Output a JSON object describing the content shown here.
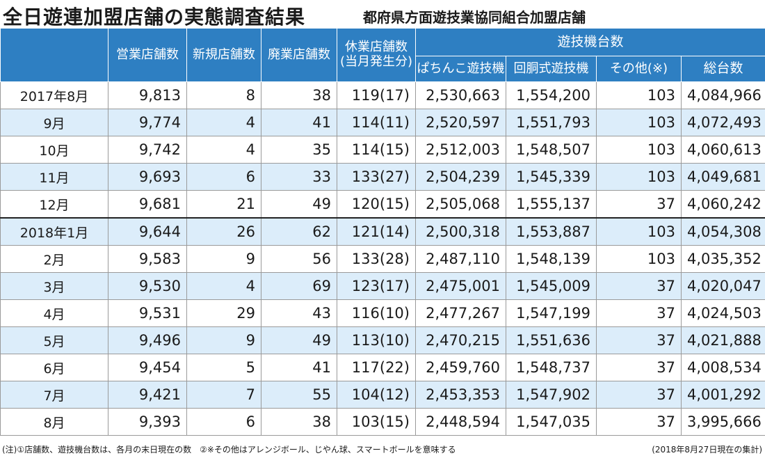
{
  "title": "全日遊連加盟店舗の実態調査結果",
  "subtitle": "都府県方面遊技業協同組合加盟店舗",
  "headers": {
    "business": "営業店舗数",
    "new": "新規店舗数",
    "closed": "廃業店舗数",
    "suspended_line1": "休業店舗数",
    "suspended_line2": "(当月発生分)",
    "machines_group": "遊技機台数",
    "pachinko": "ぱちんこ遊技機",
    "slot": "回胴式遊技機",
    "other": "その他(※)",
    "total": "総台数"
  },
  "rows": [
    {
      "month": "2017年8月",
      "business": "9,813",
      "new": "8",
      "closed": "38",
      "suspended": "119(17)",
      "pachinko": "2,530,663",
      "slot": "1,554,200",
      "other": "103",
      "total": "4,084,966"
    },
    {
      "month": "9月",
      "business": "9,774",
      "new": "4",
      "closed": "41",
      "suspended": "114(11)",
      "pachinko": "2,520,597",
      "slot": "1,551,793",
      "other": "103",
      "total": "4,072,493"
    },
    {
      "month": "10月",
      "business": "9,742",
      "new": "4",
      "closed": "35",
      "suspended": "114(15)",
      "pachinko": "2,512,003",
      "slot": "1,548,507",
      "other": "103",
      "total": "4,060,613"
    },
    {
      "month": "11月",
      "business": "9,693",
      "new": "6",
      "closed": "33",
      "suspended": "133(27)",
      "pachinko": "2,504,239",
      "slot": "1,545,339",
      "other": "103",
      "total": "4,049,681"
    },
    {
      "month": "12月",
      "business": "9,681",
      "new": "21",
      "closed": "49",
      "suspended": "120(15)",
      "pachinko": "2,505,068",
      "slot": "1,555,137",
      "other": "37",
      "total": "4,060,242"
    },
    {
      "month": "2018年1月",
      "business": "9,644",
      "new": "26",
      "closed": "62",
      "suspended": "121(14)",
      "pachinko": "2,500,318",
      "slot": "1,553,887",
      "other": "103",
      "total": "4,054,308"
    },
    {
      "month": "2月",
      "business": "9,583",
      "new": "9",
      "closed": "56",
      "suspended": "133(28)",
      "pachinko": "2,487,110",
      "slot": "1,548,139",
      "other": "103",
      "total": "4,035,352"
    },
    {
      "month": "3月",
      "business": "9,530",
      "new": "4",
      "closed": "69",
      "suspended": "123(17)",
      "pachinko": "2,475,001",
      "slot": "1,545,009",
      "other": "37",
      "total": "4,020,047"
    },
    {
      "month": "4月",
      "business": "9,531",
      "new": "29",
      "closed": "43",
      "suspended": "116(10)",
      "pachinko": "2,477,267",
      "slot": "1,547,199",
      "other": "37",
      "total": "4,024,503"
    },
    {
      "month": "5月",
      "business": "9,496",
      "new": "9",
      "closed": "49",
      "suspended": "113(10)",
      "pachinko": "2,470,215",
      "slot": "1,551,636",
      "other": "37",
      "total": "4,021,888"
    },
    {
      "month": "6月",
      "business": "9,454",
      "new": "5",
      "closed": "41",
      "suspended": "117(22)",
      "pachinko": "2,459,760",
      "slot": "1,548,737",
      "other": "37",
      "total": "4,008,534"
    },
    {
      "month": "7月",
      "business": "9,421",
      "new": "7",
      "closed": "55",
      "suspended": "104(12)",
      "pachinko": "2,453,353",
      "slot": "1,547,902",
      "other": "37",
      "total": "4,001,292"
    },
    {
      "month": "8月",
      "business": "9,393",
      "new": "6",
      "closed": "38",
      "suspended": "103(15)",
      "pachinko": "2,448,594",
      "slot": "1,547,035",
      "other": "37",
      "total": "3,995,666"
    }
  ],
  "note": "(注)①店舗数、遊技機台数は、各月の末日現在の数　②※その他はアレンジボール、じやん球、スマートボールを意味する",
  "as_of": "(2018年8月27日現在の集計)"
}
